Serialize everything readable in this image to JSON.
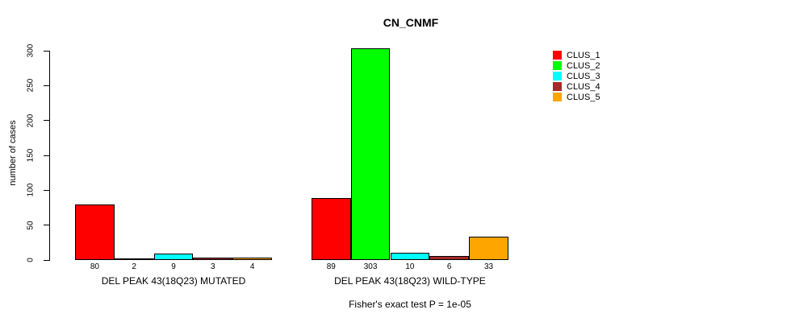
{
  "title": "CN_CNMF",
  "footer": "Fisher's exact test P = 1e-05",
  "chart_data": {
    "type": "bar",
    "title": "CN_CNMF",
    "xlabel": "",
    "ylabel": "number of cases",
    "ylim": [
      0,
      300
    ],
    "yticks": [
      0,
      50,
      100,
      150,
      200,
      250,
      300
    ],
    "grid": false,
    "legend_position": "top-right",
    "bar_value_labels": true,
    "categories": [
      "DEL PEAK 43(18Q23) MUTATED",
      "DEL PEAK 43(18Q23) WILD-TYPE"
    ],
    "series": [
      {
        "name": "CLUS_1",
        "color": "#FF0000",
        "values": [
          80,
          89
        ]
      },
      {
        "name": "CLUS_2",
        "color": "#00FF00",
        "values": [
          2,
          303
        ]
      },
      {
        "name": "CLUS_3",
        "color": "#00FFFF",
        "values": [
          9,
          10
        ]
      },
      {
        "name": "CLUS_4",
        "color": "#A52A2A",
        "values": [
          3,
          6
        ]
      },
      {
        "name": "CLUS_5",
        "color": "#FFA500",
        "values": [
          4,
          33
        ]
      }
    ],
    "annotation": "Fisher's exact test P = 1e-05"
  }
}
